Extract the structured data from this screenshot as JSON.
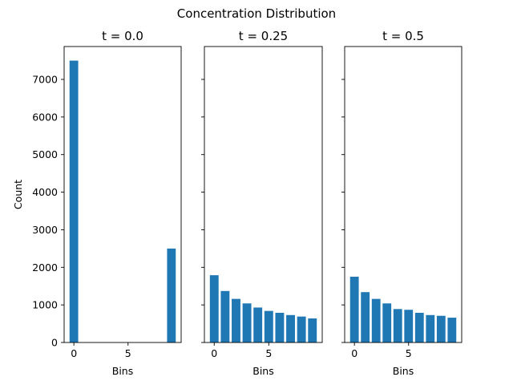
{
  "figure": {
    "title": "Concentration Distribution",
    "colors": {
      "bar": "#1f77b4",
      "axes": "#000000",
      "background": "#ffffff"
    }
  },
  "chart_data": [
    {
      "type": "bar",
      "title": "t = 0.0",
      "xlabel": "Bins",
      "ylabel": "Count",
      "x": [
        0,
        1,
        2,
        3,
        4,
        5,
        6,
        7,
        8,
        9
      ],
      "values": [
        7500,
        0,
        0,
        0,
        0,
        0,
        0,
        0,
        0,
        2500
      ],
      "xticks": [
        0,
        5
      ],
      "yticks": [
        0,
        1000,
        2000,
        3000,
        4000,
        5000,
        6000,
        7000
      ],
      "ylim": [
        0,
        7875
      ],
      "xlim": [
        -0.9,
        9.9
      ],
      "grid": false
    },
    {
      "type": "bar",
      "title": "t = 0.25",
      "xlabel": "Bins",
      "ylabel": "",
      "x": [
        0,
        1,
        2,
        3,
        4,
        5,
        6,
        7,
        8,
        9
      ],
      "values": [
        1790,
        1370,
        1160,
        1040,
        930,
        840,
        790,
        730,
        690,
        640
      ],
      "xticks": [
        0,
        5
      ],
      "yticks": [
        0,
        1000,
        2000,
        3000,
        4000,
        5000,
        6000,
        7000
      ],
      "ylim": [
        0,
        7875
      ],
      "xlim": [
        -0.9,
        9.9
      ],
      "grid": false
    },
    {
      "type": "bar",
      "title": "t = 0.5",
      "xlabel": "Bins",
      "ylabel": "",
      "x": [
        0,
        1,
        2,
        3,
        4,
        5,
        6,
        7,
        8,
        9
      ],
      "values": [
        1750,
        1340,
        1160,
        1040,
        890,
        870,
        790,
        730,
        710,
        660
      ],
      "xticks": [
        0,
        5
      ],
      "yticks": [
        0,
        1000,
        2000,
        3000,
        4000,
        5000,
        6000,
        7000
      ],
      "ylim": [
        0,
        7875
      ],
      "xlim": [
        -0.9,
        9.9
      ],
      "grid": false
    }
  ]
}
